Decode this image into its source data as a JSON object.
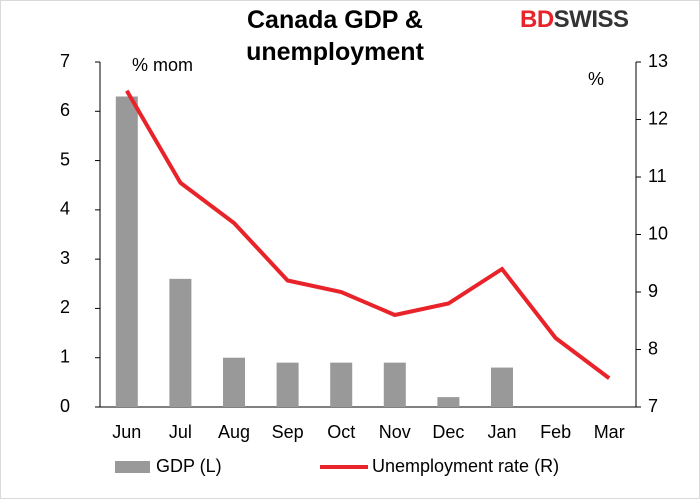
{
  "chart_data": {
    "type": "bar_line",
    "title": "Canada GDP & unemployment",
    "logo": [
      "BD",
      "SWISS"
    ],
    "y_label": "% mom",
    "y2_label": "%",
    "categories": [
      "Jun",
      "Jul",
      "Aug",
      "Sep",
      "Oct",
      "Nov",
      "Dec",
      "Jan",
      "Feb",
      "Mar"
    ],
    "series": [
      {
        "name": "GDP (L)",
        "type": "bar",
        "color": "#999999",
        "values": [
          6.3,
          2.6,
          1.0,
          0.9,
          0.9,
          0.9,
          0.2,
          0.8,
          null,
          null
        ]
      },
      {
        "name": "Unemployment rate (R)",
        "type": "line",
        "axis": "y2",
        "color": "#e8232a",
        "values": [
          12.5,
          10.9,
          10.2,
          9.2,
          9.0,
          8.6,
          8.8,
          9.4,
          8.2,
          7.5
        ]
      }
    ],
    "ylim": [
      0,
      7
    ],
    "yticks": [
      0,
      1,
      2,
      3,
      4,
      5,
      6,
      7
    ],
    "y2lim": [
      7,
      13
    ],
    "y2ticks": [
      7,
      8,
      9,
      10,
      11,
      12,
      13
    ],
    "grid": false,
    "legend": "bottom"
  }
}
